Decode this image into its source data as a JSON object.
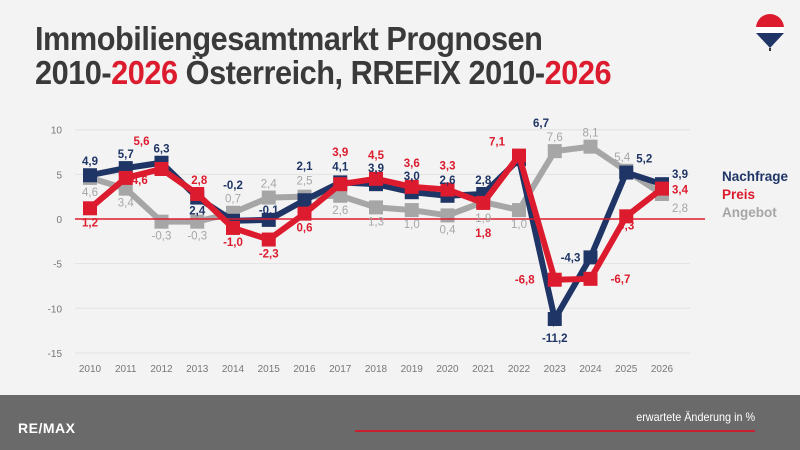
{
  "title": {
    "line1": "Immobiliengesamtmarkt Prognosen",
    "line2_part1": "2010-",
    "line2_part2": "2026",
    "line2_part3": " Österreich, RREFIX 2010-",
    "line2_part4": "2026"
  },
  "logo": {
    "text": "RE/MAX"
  },
  "footer": {
    "logo": "RE/MAX",
    "note": "erwartete Änderung in %"
  },
  "colors": {
    "nachfrage": "#1f3566",
    "preis": "#dc1c2e",
    "angebot": "#a6a6a6",
    "accent": "#dc1c2e",
    "footer": "#6a6a6a"
  },
  "chart_data": {
    "type": "line",
    "x": [
      "2010",
      "2011",
      "2012",
      "2013",
      "2014",
      "2015",
      "2016",
      "2017",
      "2018",
      "2019",
      "2020",
      "2021",
      "2022",
      "2023",
      "2024",
      "2025",
      "2026"
    ],
    "ylim": [
      -15,
      10
    ],
    "yticks": [
      10,
      5,
      0,
      -5,
      -10,
      -15
    ],
    "grid": true,
    "legend": "right",
    "series": [
      {
        "name": "Angebot",
        "color": "#a6a6a6",
        "values": [
          4.6,
          3.4,
          -0.3,
          -0.3,
          0.7,
          2.4,
          2.5,
          2.6,
          1.3,
          1.0,
          0.4,
          1.9,
          1.0,
          7.6,
          8.1,
          5.4,
          2.8
        ]
      },
      {
        "name": "Nachfrage",
        "color": "#1f3566",
        "values": [
          4.9,
          5.7,
          6.3,
          2.4,
          -0.2,
          -0.1,
          2.1,
          4.1,
          3.9,
          3.0,
          2.6,
          2.8,
          6.7,
          -11.2,
          -4.3,
          5.2,
          3.9
        ]
      },
      {
        "name": "Preis",
        "color": "#dc1c2e",
        "values": [
          1.2,
          4.6,
          5.6,
          2.8,
          -1.0,
          -2.3,
          0.6,
          3.9,
          4.5,
          3.6,
          3.3,
          1.8,
          7.1,
          -6.8,
          -6.7,
          0.3,
          3.4
        ]
      }
    ]
  }
}
